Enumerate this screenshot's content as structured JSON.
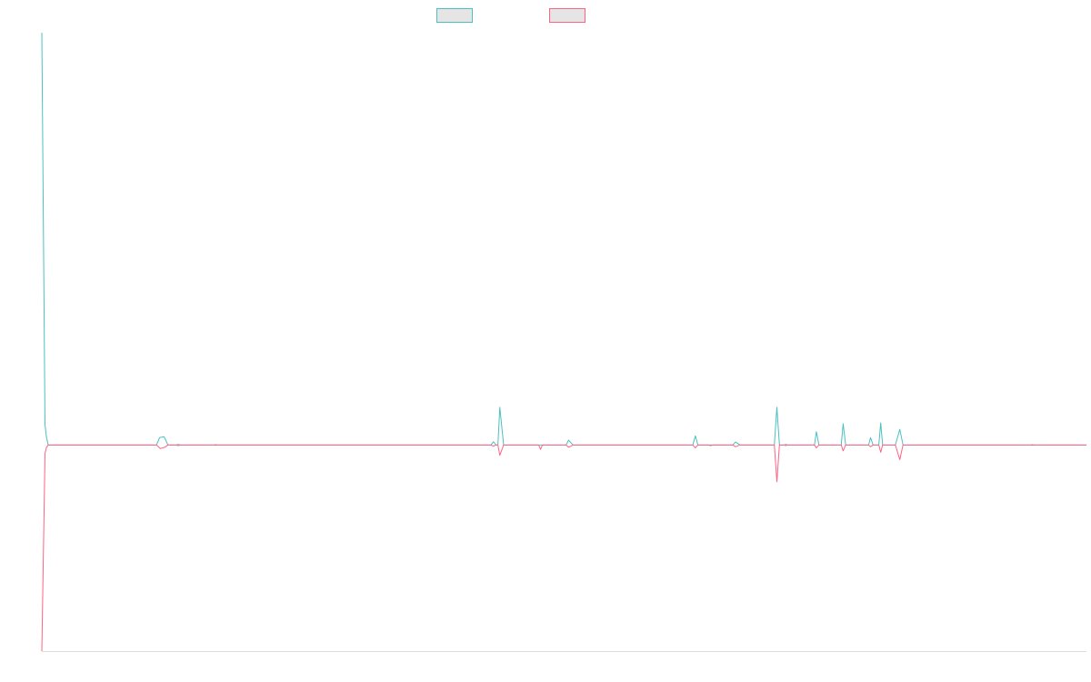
{
  "chart_data": {
    "type": "line",
    "title": "",
    "xlabel": "",
    "ylabel": "",
    "grid": false,
    "legend_position": "top",
    "x_range": [
      0,
      164
    ],
    "ylim": [
      -0.7,
      1.4
    ],
    "series": [
      {
        "name": "",
        "color": "#4bc0c0",
        "points": [
          [
            0,
            1.4
          ],
          [
            0.5,
            0.07
          ],
          [
            0.7,
            0.03
          ],
          [
            1,
            0.0
          ],
          [
            18,
            0.0
          ],
          [
            18.5,
            0.025
          ],
          [
            19.2,
            0.028
          ],
          [
            19.8,
            0.0
          ],
          [
            21,
            0.0
          ],
          [
            21.4,
            0.002
          ],
          [
            21.8,
            0.0
          ],
          [
            27,
            0.0
          ],
          [
            27.3,
            0.001
          ],
          [
            27.6,
            0.0
          ],
          [
            70.5,
            0.0
          ],
          [
            70.9,
            0.011
          ],
          [
            71.3,
            0.0
          ],
          [
            71.6,
            0.0
          ],
          [
            71.9,
            0.128
          ],
          [
            72.5,
            0.0
          ],
          [
            78,
            0.0
          ],
          [
            78.3,
            0.0
          ],
          [
            78.6,
            0.0
          ],
          [
            82.3,
            0.0
          ],
          [
            82.7,
            0.016
          ],
          [
            83.4,
            0.0
          ],
          [
            102.2,
            0.0
          ],
          [
            102.6,
            0.031
          ],
          [
            103.0,
            0.0
          ],
          [
            104.6,
            0.0
          ],
          [
            105.0,
            0.0
          ],
          [
            105.4,
            0.0
          ],
          [
            108.5,
            0.0
          ],
          [
            108.9,
            0.01
          ],
          [
            109.6,
            0.0
          ],
          [
            115.0,
            0.0
          ],
          [
            115.4,
            0.128
          ],
          [
            115.8,
            0.0
          ],
          [
            116.5,
            0.0
          ],
          [
            116.8,
            0.002
          ],
          [
            117.1,
            0.0
          ],
          [
            121.3,
            0.0
          ],
          [
            121.6,
            0.045
          ],
          [
            122.0,
            0.0
          ],
          [
            125.5,
            0.0
          ],
          [
            125.8,
            0.072
          ],
          [
            126.2,
            0.0
          ],
          [
            129.8,
            0.0
          ],
          [
            130.1,
            0.025
          ],
          [
            130.5,
            0.0
          ],
          [
            131.4,
            0.0
          ],
          [
            131.7,
            0.075
          ],
          [
            132.0,
            0.0
          ],
          [
            134.0,
            0.0
          ],
          [
            134.7,
            0.053
          ],
          [
            135.2,
            0.0
          ],
          [
            155.3,
            0.0
          ],
          [
            155.5,
            0.001
          ],
          [
            155.8,
            0.0
          ],
          [
            164,
            0.0
          ]
        ]
      },
      {
        "name": "",
        "color": "#ff6384",
        "points": [
          [
            0,
            -0.7
          ],
          [
            0.5,
            -0.03
          ],
          [
            0.7,
            -0.01
          ],
          [
            1,
            0.0
          ],
          [
            18,
            0.0
          ],
          [
            18.6,
            -0.012
          ],
          [
            19.3,
            -0.008
          ],
          [
            19.8,
            0.0
          ],
          [
            21,
            0.0
          ],
          [
            21.4,
            -0.002
          ],
          [
            21.8,
            0.0
          ],
          [
            27,
            0.0
          ],
          [
            27.3,
            -0.001
          ],
          [
            27.6,
            0.0
          ],
          [
            70.5,
            0.0
          ],
          [
            70.9,
            -0.004
          ],
          [
            71.3,
            0.0
          ],
          [
            71.6,
            0.0
          ],
          [
            71.9,
            -0.035
          ],
          [
            72.5,
            0.0
          ],
          [
            78,
            0.0
          ],
          [
            78.3,
            -0.015
          ],
          [
            78.6,
            0.0
          ],
          [
            82.3,
            0.0
          ],
          [
            82.7,
            -0.008
          ],
          [
            83.4,
            0.0
          ],
          [
            102.2,
            0.0
          ],
          [
            102.6,
            -0.01
          ],
          [
            103.0,
            0.0
          ],
          [
            104.6,
            0.0
          ],
          [
            105.0,
            -0.002
          ],
          [
            105.4,
            0.0
          ],
          [
            108.5,
            0.0
          ],
          [
            108.9,
            -0.006
          ],
          [
            109.6,
            0.0
          ],
          [
            115.0,
            0.0
          ],
          [
            115.4,
            -0.125
          ],
          [
            115.8,
            0.0
          ],
          [
            116.5,
            0.0
          ],
          [
            116.8,
            -0.002
          ],
          [
            117.1,
            0.0
          ],
          [
            121.3,
            0.0
          ],
          [
            121.6,
            -0.01
          ],
          [
            122.0,
            0.0
          ],
          [
            125.5,
            0.0
          ],
          [
            125.8,
            -0.02
          ],
          [
            126.2,
            0.0
          ],
          [
            129.8,
            0.0
          ],
          [
            130.1,
            -0.006
          ],
          [
            130.5,
            0.0
          ],
          [
            131.4,
            0.0
          ],
          [
            131.7,
            -0.025
          ],
          [
            132.0,
            0.0
          ],
          [
            134.0,
            0.0
          ],
          [
            134.7,
            -0.05
          ],
          [
            135.2,
            0.0
          ],
          [
            155.3,
            0.0
          ],
          [
            155.5,
            -0.001
          ],
          [
            155.8,
            0.0
          ],
          [
            164,
            0.0
          ]
        ]
      }
    ],
    "legend": [
      {
        "label": "",
        "stroke": "#4bc0c0",
        "fill": "#e5e5e5"
      },
      {
        "label": "",
        "stroke": "#ff6384",
        "fill": "#e5e5e5"
      }
    ],
    "axis_line_color": "#dddddd"
  }
}
